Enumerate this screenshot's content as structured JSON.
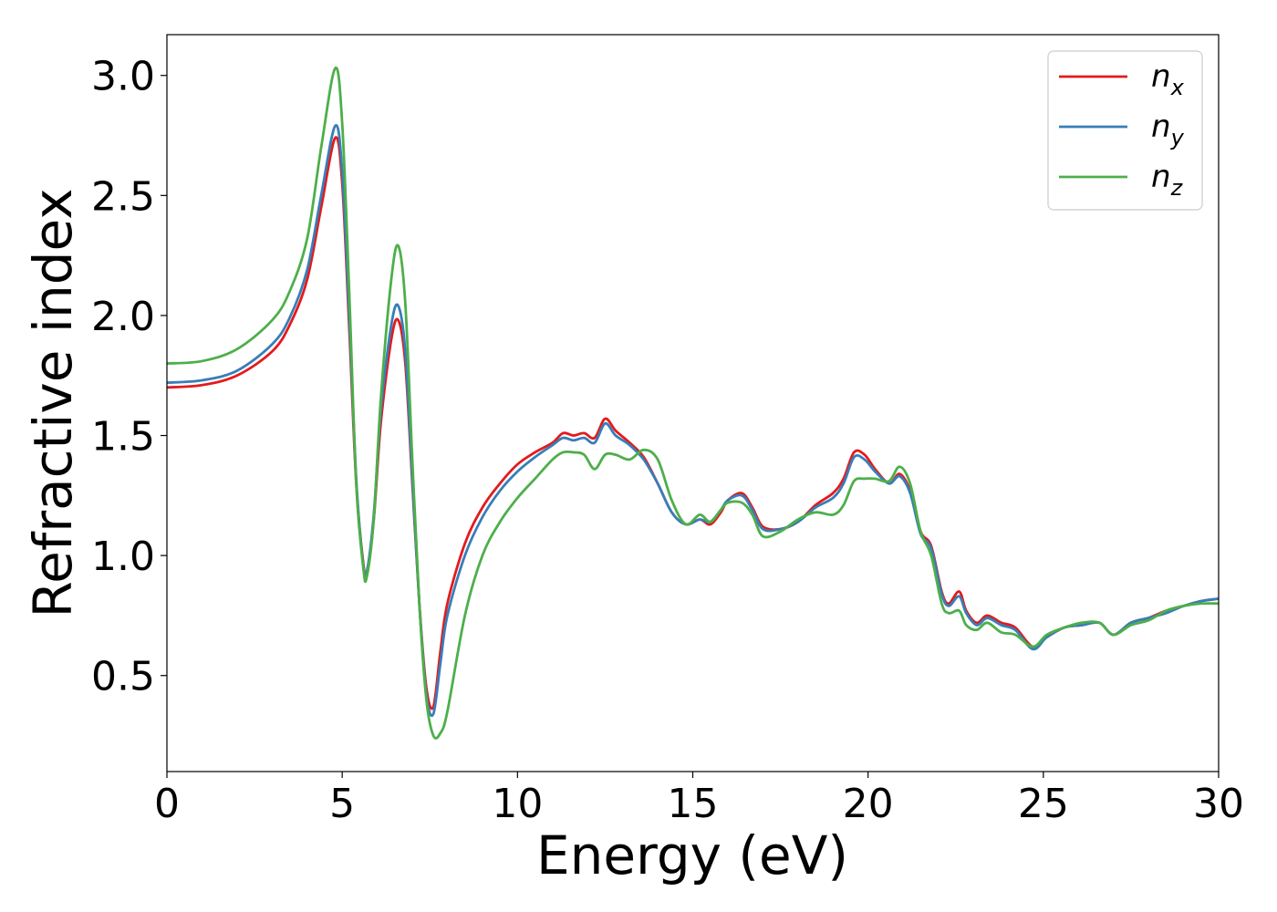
{
  "chart_data": {
    "type": "line",
    "title": "",
    "xlabel": "Energy (eV)",
    "ylabel": "Refractive index",
    "xlim": [
      0,
      30
    ],
    "ylim": [
      0.1,
      3.17
    ],
    "xticks": [
      0,
      5,
      10,
      15,
      20,
      25,
      30
    ],
    "xtick_labels": [
      "0",
      "5",
      "10",
      "15",
      "20",
      "25",
      "30"
    ],
    "yticks": [
      0.5,
      1.0,
      1.5,
      2.0,
      2.5,
      3.0
    ],
    "ytick_labels": [
      "0.5",
      "1.0",
      "1.5",
      "2.0",
      "2.5",
      "3.0"
    ],
    "grid": false,
    "legend": {
      "position": "top-right",
      "entries": [
        {
          "base": "n",
          "sub": "x"
        },
        {
          "base": "n",
          "sub": "y"
        },
        {
          "base": "n",
          "sub": "z"
        }
      ]
    },
    "series": [
      {
        "name": "n_x",
        "color": "#e41a1c",
        "points": [
          [
            0,
            1.7
          ],
          [
            1,
            1.71
          ],
          [
            2,
            1.75
          ],
          [
            3,
            1.85
          ],
          [
            3.5,
            1.96
          ],
          [
            4,
            2.15
          ],
          [
            4.4,
            2.45
          ],
          [
            4.8,
            2.74
          ],
          [
            5.0,
            2.55
          ],
          [
            5.2,
            1.95
          ],
          [
            5.4,
            1.3
          ],
          [
            5.6,
            0.97
          ],
          [
            5.7,
            0.93
          ],
          [
            5.9,
            1.15
          ],
          [
            6.1,
            1.55
          ],
          [
            6.4,
            1.9
          ],
          [
            6.6,
            1.98
          ],
          [
            6.8,
            1.8
          ],
          [
            7.0,
            1.3
          ],
          [
            7.2,
            0.8
          ],
          [
            7.4,
            0.45
          ],
          [
            7.6,
            0.37
          ],
          [
            7.8,
            0.6
          ],
          [
            8.0,
            0.8
          ],
          [
            8.5,
            1.05
          ],
          [
            9.0,
            1.2
          ],
          [
            9.5,
            1.3
          ],
          [
            10,
            1.38
          ],
          [
            10.5,
            1.43
          ],
          [
            11,
            1.47
          ],
          [
            11.3,
            1.51
          ],
          [
            11.6,
            1.5
          ],
          [
            11.9,
            1.51
          ],
          [
            12.2,
            1.49
          ],
          [
            12.5,
            1.57
          ],
          [
            12.8,
            1.52
          ],
          [
            13.2,
            1.47
          ],
          [
            13.6,
            1.41
          ],
          [
            14.0,
            1.3
          ],
          [
            14.4,
            1.18
          ],
          [
            14.8,
            1.13
          ],
          [
            15.2,
            1.15
          ],
          [
            15.5,
            1.13
          ],
          [
            15.8,
            1.18
          ],
          [
            16.0,
            1.23
          ],
          [
            16.4,
            1.26
          ],
          [
            16.7,
            1.2
          ],
          [
            17.0,
            1.12
          ],
          [
            17.5,
            1.11
          ],
          [
            18.0,
            1.14
          ],
          [
            18.5,
            1.21
          ],
          [
            19.0,
            1.26
          ],
          [
            19.3,
            1.32
          ],
          [
            19.6,
            1.43
          ],
          [
            19.9,
            1.42
          ],
          [
            20.2,
            1.36
          ],
          [
            20.6,
            1.3
          ],
          [
            20.9,
            1.34
          ],
          [
            21.2,
            1.27
          ],
          [
            21.5,
            1.1
          ],
          [
            21.8,
            1.04
          ],
          [
            22.1,
            0.85
          ],
          [
            22.3,
            0.8
          ],
          [
            22.6,
            0.85
          ],
          [
            22.8,
            0.77
          ],
          [
            23.1,
            0.72
          ],
          [
            23.4,
            0.75
          ],
          [
            23.8,
            0.72
          ],
          [
            24.2,
            0.7
          ],
          [
            24.7,
            0.62
          ],
          [
            25.1,
            0.66
          ],
          [
            25.6,
            0.7
          ],
          [
            26.1,
            0.71
          ],
          [
            26.6,
            0.72
          ],
          [
            27.0,
            0.67
          ],
          [
            27.5,
            0.72
          ],
          [
            28.0,
            0.74
          ],
          [
            28.5,
            0.77
          ],
          [
            29.0,
            0.79
          ],
          [
            29.5,
            0.81
          ],
          [
            30,
            0.82
          ]
        ]
      },
      {
        "name": "n_y",
        "color": "#377eb8",
        "points": [
          [
            0,
            1.72
          ],
          [
            1,
            1.73
          ],
          [
            2,
            1.77
          ],
          [
            3,
            1.88
          ],
          [
            3.5,
            1.99
          ],
          [
            4,
            2.19
          ],
          [
            4.4,
            2.5
          ],
          [
            4.8,
            2.79
          ],
          [
            5.0,
            2.6
          ],
          [
            5.2,
            2.0
          ],
          [
            5.4,
            1.32
          ],
          [
            5.6,
            0.96
          ],
          [
            5.7,
            0.93
          ],
          [
            5.9,
            1.17
          ],
          [
            6.1,
            1.6
          ],
          [
            6.4,
            1.96
          ],
          [
            6.6,
            2.04
          ],
          [
            6.8,
            1.85
          ],
          [
            7.0,
            1.32
          ],
          [
            7.2,
            0.8
          ],
          [
            7.4,
            0.42
          ],
          [
            7.6,
            0.34
          ],
          [
            7.8,
            0.55
          ],
          [
            8.0,
            0.75
          ],
          [
            8.5,
            1.0
          ],
          [
            9.0,
            1.16
          ],
          [
            9.5,
            1.27
          ],
          [
            10,
            1.35
          ],
          [
            10.5,
            1.41
          ],
          [
            11,
            1.46
          ],
          [
            11.3,
            1.49
          ],
          [
            11.6,
            1.48
          ],
          [
            11.9,
            1.49
          ],
          [
            12.2,
            1.47
          ],
          [
            12.5,
            1.55
          ],
          [
            12.8,
            1.5
          ],
          [
            13.2,
            1.46
          ],
          [
            13.6,
            1.4
          ],
          [
            14.0,
            1.3
          ],
          [
            14.4,
            1.18
          ],
          [
            14.8,
            1.13
          ],
          [
            15.2,
            1.15
          ],
          [
            15.5,
            1.14
          ],
          [
            15.8,
            1.19
          ],
          [
            16.0,
            1.23
          ],
          [
            16.4,
            1.25
          ],
          [
            16.7,
            1.19
          ],
          [
            17.0,
            1.11
          ],
          [
            17.5,
            1.11
          ],
          [
            18.0,
            1.14
          ],
          [
            18.5,
            1.2
          ],
          [
            19.0,
            1.24
          ],
          [
            19.3,
            1.3
          ],
          [
            19.6,
            1.41
          ],
          [
            19.9,
            1.4
          ],
          [
            20.2,
            1.35
          ],
          [
            20.6,
            1.3
          ],
          [
            20.9,
            1.33
          ],
          [
            21.2,
            1.26
          ],
          [
            21.5,
            1.09
          ],
          [
            21.8,
            1.03
          ],
          [
            22.1,
            0.84
          ],
          [
            22.3,
            0.79
          ],
          [
            22.6,
            0.83
          ],
          [
            22.8,
            0.76
          ],
          [
            23.1,
            0.71
          ],
          [
            23.4,
            0.74
          ],
          [
            23.8,
            0.71
          ],
          [
            24.2,
            0.69
          ],
          [
            24.7,
            0.61
          ],
          [
            25.1,
            0.66
          ],
          [
            25.6,
            0.7
          ],
          [
            26.1,
            0.71
          ],
          [
            26.6,
            0.72
          ],
          [
            27.0,
            0.67
          ],
          [
            27.5,
            0.72
          ],
          [
            28.0,
            0.74
          ],
          [
            28.5,
            0.76
          ],
          [
            29.0,
            0.79
          ],
          [
            29.5,
            0.81
          ],
          [
            30,
            0.82
          ]
        ]
      },
      {
        "name": "n_z",
        "color": "#4daf4a",
        "points": [
          [
            0,
            1.8
          ],
          [
            1,
            1.81
          ],
          [
            2,
            1.86
          ],
          [
            3,
            1.98
          ],
          [
            3.5,
            2.1
          ],
          [
            4,
            2.32
          ],
          [
            4.4,
            2.7
          ],
          [
            4.8,
            3.03
          ],
          [
            5.0,
            2.8
          ],
          [
            5.2,
            2.1
          ],
          [
            5.4,
            1.3
          ],
          [
            5.6,
            0.95
          ],
          [
            5.7,
            0.91
          ],
          [
            5.9,
            1.15
          ],
          [
            6.1,
            1.65
          ],
          [
            6.4,
            2.15
          ],
          [
            6.6,
            2.29
          ],
          [
            6.8,
            2.05
          ],
          [
            7.0,
            1.4
          ],
          [
            7.2,
            0.8
          ],
          [
            7.4,
            0.4
          ],
          [
            7.6,
            0.25
          ],
          [
            7.8,
            0.26
          ],
          [
            8.0,
            0.35
          ],
          [
            8.5,
            0.75
          ],
          [
            9.0,
            1.0
          ],
          [
            9.5,
            1.14
          ],
          [
            10,
            1.24
          ],
          [
            10.5,
            1.32
          ],
          [
            11,
            1.4
          ],
          [
            11.3,
            1.43
          ],
          [
            11.6,
            1.43
          ],
          [
            11.9,
            1.42
          ],
          [
            12.2,
            1.36
          ],
          [
            12.5,
            1.42
          ],
          [
            12.8,
            1.42
          ],
          [
            13.2,
            1.4
          ],
          [
            13.6,
            1.44
          ],
          [
            14.0,
            1.4
          ],
          [
            14.4,
            1.23
          ],
          [
            14.8,
            1.13
          ],
          [
            15.2,
            1.17
          ],
          [
            15.5,
            1.14
          ],
          [
            15.8,
            1.19
          ],
          [
            16.0,
            1.22
          ],
          [
            16.4,
            1.22
          ],
          [
            16.7,
            1.17
          ],
          [
            17.0,
            1.08
          ],
          [
            17.5,
            1.1
          ],
          [
            18.0,
            1.15
          ],
          [
            18.5,
            1.18
          ],
          [
            19.0,
            1.17
          ],
          [
            19.3,
            1.21
          ],
          [
            19.6,
            1.31
          ],
          [
            19.9,
            1.32
          ],
          [
            20.2,
            1.32
          ],
          [
            20.6,
            1.31
          ],
          [
            20.9,
            1.37
          ],
          [
            21.2,
            1.3
          ],
          [
            21.5,
            1.1
          ],
          [
            21.8,
            1.0
          ],
          [
            22.1,
            0.8
          ],
          [
            22.3,
            0.76
          ],
          [
            22.6,
            0.77
          ],
          [
            22.8,
            0.71
          ],
          [
            23.1,
            0.69
          ],
          [
            23.4,
            0.72
          ],
          [
            23.8,
            0.68
          ],
          [
            24.2,
            0.67
          ],
          [
            24.7,
            0.62
          ],
          [
            25.1,
            0.67
          ],
          [
            25.6,
            0.7
          ],
          [
            26.1,
            0.72
          ],
          [
            26.6,
            0.72
          ],
          [
            27.0,
            0.67
          ],
          [
            27.5,
            0.71
          ],
          [
            28.0,
            0.73
          ],
          [
            28.5,
            0.77
          ],
          [
            29.0,
            0.79
          ],
          [
            29.5,
            0.8
          ],
          [
            30,
            0.8
          ]
        ]
      }
    ]
  }
}
